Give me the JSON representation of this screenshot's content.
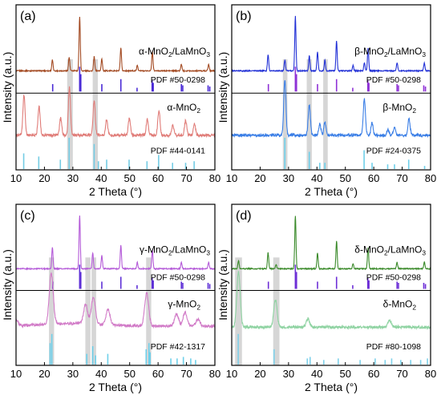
{
  "chart_data": [
    {
      "type": "line",
      "panel_label": "(a)",
      "xlabel": "2 Theta (°)",
      "ylabel": "Intensity (a.u.)",
      "xlim": [
        10,
        80
      ],
      "xticks": [
        10,
        20,
        30,
        40,
        50,
        60,
        70,
        80
      ],
      "colors": {
        "upper": "#a34a22",
        "upper_ref": "#4a2bd6",
        "lower": "#e07c78",
        "lower_ref": "#74cce4"
      },
      "annotations": [
        {
          "text": "α-MnO",
          "sub": "2",
          "post": "/LaMnO",
          "sub2": "3"
        },
        {
          "text": "α-MnO",
          "sub": "2"
        }
      ],
      "ref_labels": [
        "PDF #50-0298",
        "PDF #44-0141"
      ],
      "highlight_bands": [
        [
          28.0,
          30.0
        ],
        [
          37.0,
          38.8
        ]
      ],
      "series": [
        {
          "x": [
            10,
            22.8,
            28.7,
            32.4,
            37.5,
            40.2,
            46.9,
            52.7,
            58.0,
            68.2,
            77.8
          ],
          "y": [
            0.0,
            0.2,
            0.25,
            1.0,
            0.26,
            0.22,
            0.42,
            0.1,
            0.35,
            0.12,
            0.12
          ]
        },
        {
          "x": [
            10,
            12.8,
            18.1,
            25.7,
            28.8,
            37.5,
            41.9,
            49.9,
            56.2,
            60.3,
            65.2,
            69.7,
            72.8
          ],
          "y": [
            0.0,
            0.72,
            0.52,
            0.3,
            0.85,
            0.62,
            0.28,
            0.3,
            0.28,
            0.45,
            0.18,
            0.26,
            0.2
          ]
        }
      ],
      "reference_patterns": [
        {
          "x": [
            22.9,
            32.4,
            32.8,
            40.2,
            46.9,
            52.6,
            57.9,
            58.3,
            68.2,
            68.7,
            77.6,
            78.2
          ],
          "y": [
            0.3,
            1.0,
            0.7,
            0.3,
            0.5,
            0.15,
            0.45,
            0.35,
            0.3,
            0.25,
            0.25,
            0.2
          ]
        },
        {
          "x": [
            12.7,
            18.0,
            25.6,
            28.7,
            37.5,
            39.0,
            41.9,
            49.8,
            56.1,
            60.2,
            65.1,
            69.7,
            72.7
          ],
          "y": [
            0.5,
            0.4,
            0.3,
            1.0,
            0.8,
            0.25,
            0.3,
            0.3,
            0.25,
            0.45,
            0.2,
            0.2,
            0.25
          ]
        }
      ]
    },
    {
      "type": "line",
      "panel_label": "(b)",
      "xlabel": "2 Theta (°)",
      "ylabel": "Intensity (a.u.)",
      "xlim": [
        10,
        80
      ],
      "xticks": [
        10,
        20,
        30,
        40,
        50,
        60,
        70,
        80
      ],
      "colors": {
        "upper": "#2130d6",
        "upper_ref": "#8f32d6",
        "lower": "#3a7ee6",
        "lower_ref": "#6fd0ea"
      },
      "annotations": [
        {
          "text": "β-MnO",
          "sub": "2",
          "post": "/LaMnO",
          "sub2": "3"
        },
        {
          "text": "β-MnO",
          "sub": "2"
        }
      ],
      "ref_labels": [
        "PDF #50-0298",
        "PDF #24-0375"
      ],
      "highlight_bands": [
        [
          28.0,
          29.6
        ],
        [
          36.4,
          38.2
        ],
        [
          42.2,
          43.8
        ]
      ],
      "series": [
        {
          "x": [
            10,
            22.8,
            28.7,
            32.4,
            37.3,
            40.2,
            42.8,
            46.9,
            52.7,
            56.7,
            58.0,
            68.2,
            77.8
          ],
          "y": [
            0.0,
            0.3,
            0.2,
            1.0,
            0.28,
            0.35,
            0.2,
            0.55,
            0.1,
            0.15,
            0.42,
            0.15,
            0.15
          ]
        },
        {
          "x": [
            10,
            28.7,
            37.3,
            41.0,
            42.8,
            56.7,
            59.4,
            65.0,
            67.3,
            72.4
          ],
          "y": [
            0.0,
            1.0,
            0.55,
            0.2,
            0.22,
            0.65,
            0.22,
            0.1,
            0.15,
            0.3
          ]
        }
      ],
      "reference_patterns": [
        {
          "x": [
            22.9,
            32.4,
            32.8,
            40.2,
            46.9,
            52.6,
            57.9,
            58.3,
            68.2,
            68.7,
            77.6,
            78.2
          ],
          "y": [
            0.3,
            1.0,
            0.7,
            0.3,
            0.5,
            0.15,
            0.45,
            0.35,
            0.3,
            0.25,
            0.25,
            0.2
          ]
        },
        {
          "x": [
            28.7,
            37.3,
            41.0,
            42.8,
            56.6,
            59.4,
            64.9,
            67.3,
            72.3,
            77.9
          ],
          "y": [
            1.0,
            0.55,
            0.2,
            0.2,
            0.6,
            0.2,
            0.15,
            0.15,
            0.3,
            0.1
          ]
        }
      ]
    },
    {
      "type": "line",
      "panel_label": "(c)",
      "xlabel": "2 Theta (°)",
      "ylabel": "Intensity (a.u.)",
      "xlim": [
        10,
        80
      ],
      "xticks": [
        10,
        20,
        30,
        40,
        50,
        60,
        70,
        80
      ],
      "colors": {
        "upper": "#b45ad8",
        "upper_ref": "#5e30d6",
        "lower": "#d17ac7",
        "lower_ref": "#6fd0ea"
      },
      "annotations": [
        {
          "text": "γ-MnO",
          "sub": "2",
          "post": "/LaMnO",
          "sub2": "3"
        },
        {
          "text": "γ-MnO",
          "sub": "2"
        }
      ],
      "ref_labels": [
        "PDF #50-0298",
        "PDF #42-1317"
      ],
      "highlight_bands": [
        [
          21.6,
          23.4
        ],
        [
          34.4,
          36.2
        ],
        [
          36.6,
          38.2
        ],
        [
          55.8,
          57.6
        ]
      ],
      "series": [
        {
          "x": [
            10,
            22.8,
            32.4,
            37.0,
            40.2,
            46.9,
            52.7,
            58.0,
            68.2,
            77.8
          ],
          "y": [
            0.0,
            0.4,
            1.0,
            0.3,
            0.25,
            0.45,
            0.12,
            0.35,
            0.12,
            0.12
          ]
        },
        {
          "x": [
            10,
            22.4,
            34.5,
            37.2,
            42.4,
            56.0,
            66.5,
            69.5,
            74.0
          ],
          "y": [
            0.1,
            0.92,
            0.35,
            0.5,
            0.28,
            0.6,
            0.22,
            0.25,
            0.12
          ]
        }
      ],
      "reference_patterns": [
        {
          "x": [
            22.9,
            32.4,
            32.8,
            40.2,
            46.9,
            52.6,
            57.9,
            58.3,
            68.2,
            68.7,
            77.6,
            78.2
          ],
          "y": [
            0.3,
            1.0,
            0.7,
            0.3,
            0.5,
            0.15,
            0.45,
            0.35,
            0.3,
            0.25,
            0.25,
            0.2
          ]
        },
        {
          "x": [
            22.0,
            22.6,
            34.9,
            37.0,
            38.0,
            42.3,
            55.8,
            56.8,
            57.2,
            64.5,
            66.7,
            68.9,
            71.5,
            73.2
          ],
          "y": [
            0.7,
            1.0,
            0.35,
            0.6,
            0.3,
            0.35,
            0.5,
            0.7,
            0.4,
            0.2,
            0.2,
            0.25,
            0.2,
            0.15
          ]
        }
      ]
    },
    {
      "type": "line",
      "panel_label": "(d)",
      "xlabel": "2 Theta (°)",
      "ylabel": "Intensity (a.u.)",
      "xlim": [
        10,
        80
      ],
      "xticks": [
        10,
        20,
        30,
        40,
        50,
        60,
        70,
        80
      ],
      "colors": {
        "upper": "#3a8a2a",
        "upper_ref": "#6d2fd6",
        "lower": "#8fd3a2",
        "lower_ref": "#7fd1ea"
      },
      "annotations": [
        {
          "text": "δ-MnO",
          "sub": "2",
          "post": "/LaMnO",
          "sub2": "3"
        },
        {
          "text": "δ-MnO",
          "sub": "2"
        }
      ],
      "ref_labels": [
        "PDF #50-0298",
        "PDF #80-1098"
      ],
      "highlight_bands": [
        [
          11.2,
          13.6
        ],
        [
          24.6,
          26.8
        ]
      ],
      "series": [
        {
          "x": [
            10,
            12.4,
            22.8,
            25.6,
            32.4,
            40.2,
            46.9,
            52.7,
            58.0,
            68.2,
            77.8
          ],
          "y": [
            0.0,
            0.15,
            0.3,
            0.08,
            1.0,
            0.3,
            0.52,
            0.1,
            0.4,
            0.12,
            0.12
          ]
        },
        {
          "x": [
            10,
            12.4,
            25.4,
            36.8,
            65.6
          ],
          "y": [
            0.0,
            1.0,
            0.5,
            0.15,
            0.12
          ]
        }
      ],
      "reference_patterns": [
        {
          "x": [
            22.9,
            32.4,
            32.8,
            40.2,
            46.9,
            52.6,
            57.9,
            58.3,
            68.2,
            68.7,
            77.6,
            78.2
          ],
          "y": [
            0.3,
            1.0,
            0.7,
            0.3,
            0.5,
            0.15,
            0.45,
            0.35,
            0.3,
            0.25,
            0.25,
            0.2
          ]
        },
        {
          "x": [
            12.3,
            24.9,
            36.6,
            37.6,
            42.4,
            47.5,
            55.2,
            60.5,
            64.0,
            66.3,
            69.5,
            73.0,
            76.5,
            78.9
          ],
          "y": [
            1.0,
            0.5,
            0.2,
            0.25,
            0.15,
            0.2,
            0.15,
            0.2,
            0.15,
            0.2,
            0.15,
            0.15,
            0.15,
            0.2
          ]
        }
      ]
    }
  ]
}
